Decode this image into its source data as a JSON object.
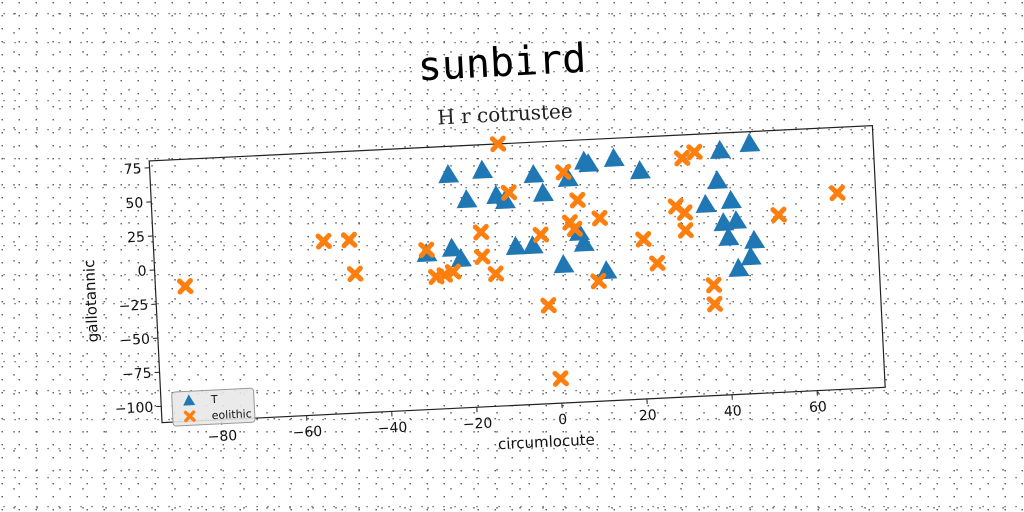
{
  "chart_data": {
    "type": "scatter",
    "title": "sunbird",
    "subtitle": "H r cotrustee",
    "xlabel": "circumlocute",
    "ylabel": "gallotannic",
    "xlim": [
      -94,
      76
    ],
    "ylim": [
      -112,
      80
    ],
    "xticks": [
      -80,
      -60,
      -40,
      -20,
      0,
      20,
      40,
      60
    ],
    "yticks": [
      75,
      50,
      25,
      0,
      -25,
      -50,
      -75,
      -100
    ],
    "legend_position": "lower-left",
    "grid": false,
    "series": [
      {
        "name": "T",
        "marker": "triangle",
        "color": "#1f77b4",
        "points": [
          [
            -24,
            59
          ],
          [
            -16,
            61
          ],
          [
            -20,
            40
          ],
          [
            -13,
            42
          ],
          [
            -11,
            38
          ],
          [
            -4,
            56
          ],
          [
            -2,
            42
          ],
          [
            4,
            52
          ],
          [
            8,
            64
          ],
          [
            9,
            62
          ],
          [
            15,
            65
          ],
          [
            21,
            55
          ],
          [
            40,
            67
          ],
          [
            47,
            71
          ],
          [
            39,
            45
          ],
          [
            36,
            28
          ],
          [
            42,
            30
          ],
          [
            40,
            14
          ],
          [
            43,
            15
          ],
          [
            41,
            3
          ],
          [
            47,
            0
          ],
          [
            46,
            -12
          ],
          [
            43,
            -20
          ],
          [
            -30,
            2
          ],
          [
            -24,
            5
          ],
          [
            -22,
            -3
          ],
          [
            -9,
            4
          ],
          [
            -5,
            4
          ],
          [
            2,
            -11
          ],
          [
            6,
            12
          ],
          [
            7,
            4
          ],
          [
            12,
            -17
          ]
        ]
      },
      {
        "name": "eolithic",
        "marker": "x",
        "color": "#ff7f0e",
        "points": [
          [
            -87,
            -13
          ],
          [
            -54,
            15
          ],
          [
            -48,
            15
          ],
          [
            -47,
            -10
          ],
          [
            -30,
            5
          ],
          [
            -28,
            -15
          ],
          [
            -26,
            -14
          ],
          [
            -24,
            -12
          ],
          [
            -17,
            16
          ],
          [
            -17,
            -2
          ],
          [
            -14,
            -15
          ],
          [
            -12,
            80
          ],
          [
            -10,
            44
          ],
          [
            -3,
            12
          ],
          [
            -2,
            -40
          ],
          [
            0,
            -94
          ],
          [
            3,
            57
          ],
          [
            4,
            20
          ],
          [
            6,
            36
          ],
          [
            5,
            15
          ],
          [
            11,
            22
          ],
          [
            10,
            -24
          ],
          [
            21,
            5
          ],
          [
            24,
            -13
          ],
          [
            29,
            28
          ],
          [
            31,
            23
          ],
          [
            31,
            10
          ],
          [
            31,
            63
          ],
          [
            34,
            67
          ],
          [
            37,
            -31
          ],
          [
            37,
            -45
          ],
          [
            53,
            18
          ],
          [
            67,
            32
          ]
        ]
      }
    ]
  }
}
